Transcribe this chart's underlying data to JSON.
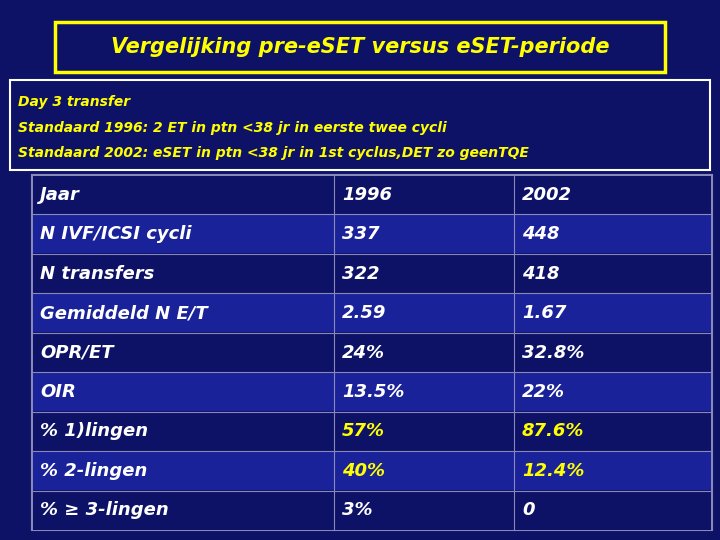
{
  "title": "Vergelijking pre-eSET versus eSET-periode",
  "subtitle_lines": [
    "Day 3 transfer",
    "Standaard 1996: 2 ET in ptn <38 jr in eerste twee cycli",
    "Standaard 2002: eSET in ptn <38 jr in 1st cyclus,DET zo geenTQE"
  ],
  "table_headers": [
    "Jaar",
    "1996",
    "2002"
  ],
  "table_rows": [
    {
      "label": "N IVF/ICSI cycli",
      "v1996": "337",
      "v2002": "448",
      "highlight": false
    },
    {
      "label": "N transfers",
      "v1996": "322",
      "v2002": "418",
      "highlight": false
    },
    {
      "label": "Gemiddeld N E/T",
      "v1996": "2.59",
      "v2002": "1.67",
      "highlight": false
    },
    {
      "label": "OPR/ET",
      "v1996": "24%",
      "v2002": "32.8%",
      "highlight": false
    },
    {
      "label": "OIR",
      "v1996": "13.5%",
      "v2002": "22%",
      "highlight": false
    },
    {
      "label": "% 1)lingen",
      "v1996": "57%",
      "v2002": "87.6%",
      "highlight": true
    },
    {
      "label": "% 2-lingen",
      "v1996": "40%",
      "v2002": "12.4%",
      "highlight": true
    },
    {
      "label": "% ≥ 3-lingen",
      "v1996": "3%",
      "v2002": "0",
      "highlight": false
    }
  ],
  "bg_color": "#0d1266",
  "title_text_color": "#ffff00",
  "title_border_color": "#ffff00",
  "subtitle_text_color": "#ffff00",
  "subtitle_border_color": "#ffffff",
  "table_border_color": "#8888bb",
  "header_text_color": "#ffffff",
  "row_text_color": "#ffffff",
  "highlight_text_color": "#ffff00",
  "row_bg_even": "#0d1266",
  "row_bg_odd": "#1a2299",
  "title_fs": 15,
  "sub_fs": 10,
  "row_fs": 13
}
